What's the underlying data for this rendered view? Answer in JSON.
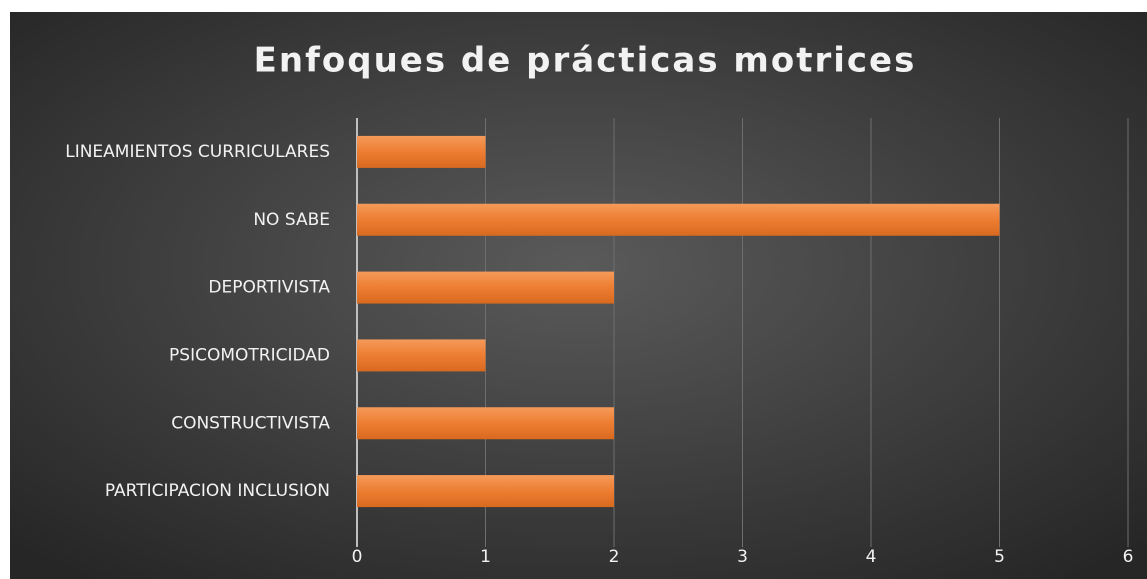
{
  "chart_data": {
    "type": "bar",
    "orientation": "horizontal",
    "title": "Enfoques de prácticas motrices",
    "categories": [
      "LINEAMIENTOS CURRICULARES",
      "NO SABE",
      "DEPORTIVISTA",
      "PSICOMOTRICIDAD",
      "CONSTRUCTIVISTA",
      "PARTICIPACION INCLUSION"
    ],
    "values": [
      1,
      5,
      2,
      1,
      2,
      2
    ],
    "color": "#ed7d31",
    "xlim": [
      0,
      6
    ],
    "xticks": [
      0,
      1,
      2,
      3,
      4,
      5,
      6
    ],
    "grid": true
  }
}
